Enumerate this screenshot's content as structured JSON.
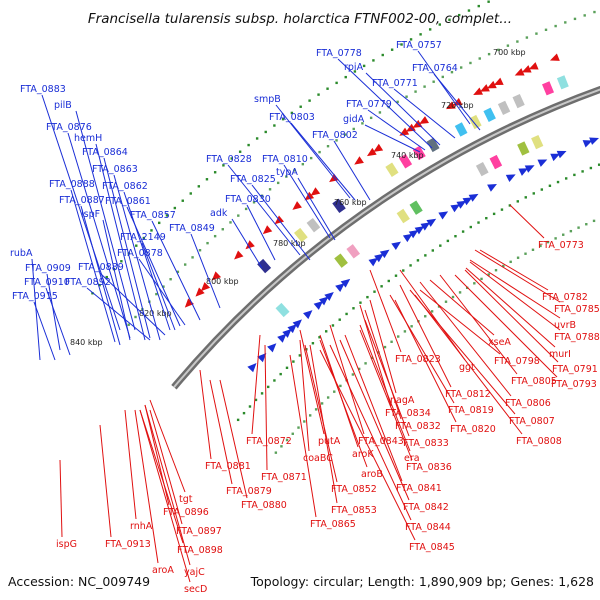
{
  "title": "Francisella tularensis subsp. holarctica FTNF002-00, complet...",
  "footer": {
    "accession": "Accession: NC_009749",
    "summary": "Topology: circular; Length: 1,890,909 bp; Genes: 1,628"
  },
  "scale_ticks": [
    "700 kbp",
    "720 kbp",
    "740 kbp",
    "760 kbp",
    "780 kbp",
    "800 kbp",
    "820 kbp",
    "840 kbp"
  ],
  "colors": {
    "forward_strand": "#1a2ed6",
    "reverse_strand": "#e01010",
    "backbone": "#888888",
    "gc_dots": "#2a8a2a"
  },
  "forward_genes": [
    "FTA_0757",
    "FTA_0778",
    "rpiA",
    "FTA_0764",
    "FTA_0771",
    "smpB",
    "FTA_0779",
    "FTA_0803",
    "gidA",
    "FTA_0802",
    "FTA_0883",
    "pilB",
    "FTA_0876",
    "hemH",
    "FTA_0864",
    "FTA_0863",
    "FTA_0828",
    "FTA_0810",
    "typA",
    "FTA_0825",
    "FTA_0888",
    "FTA_0862",
    "FTA_0887",
    "FTA_0861",
    "ispF",
    "FTA_0857",
    "FTA_0830",
    "adk",
    "FTA_2149",
    "FTA_0849",
    "FTA_0878",
    "rubA",
    "FTA_0909",
    "FTA_0889",
    "FTA_0910",
    "FTA_0892",
    "FTA_0915"
  ],
  "reverse_genes": [
    "FTA_0773",
    "FTA_0782",
    "FTA_0785",
    "uvrB",
    "FTA_0788",
    "xseA",
    "murI",
    "FTA_0798",
    "FTA_0791",
    "FTA_0823",
    "ggt",
    "FTA_0805",
    "FTA_0793",
    "nagA",
    "FTA_0812",
    "FTA_0806",
    "FTA_0834",
    "FTA_0819",
    "FTA_0832",
    "FTA_0807",
    "FTA_0820",
    "putA",
    "FTA_0843",
    "FTA_0808",
    "FTA_0872",
    "FTA_0833",
    "coaBC",
    "aroK",
    "era",
    "FTA_0881",
    "FTA_0836",
    "aroB",
    "FTA_0871",
    "FTA_0879",
    "FTA_0852",
    "FTA_0841",
    "FTA_0880",
    "tgt",
    "FTA_0853",
    "FTA_0842",
    "FTA_0896",
    "FTA_0865",
    "FTA_0844",
    "rnhA",
    "FTA_0897",
    "ispG",
    "FTA_0913",
    "FTA_0898",
    "FTA_0845",
    "aroA",
    "yajC",
    "secD"
  ]
}
